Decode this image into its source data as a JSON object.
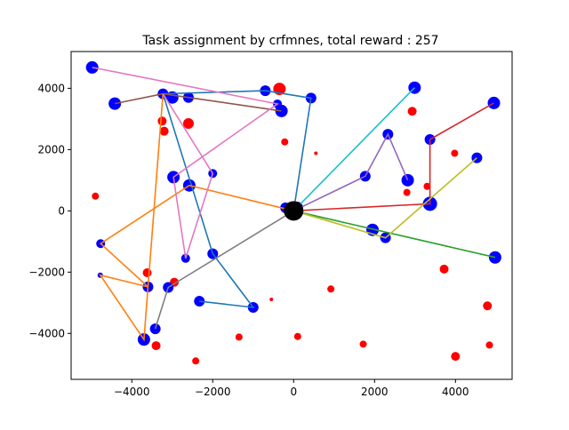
{
  "chart_data": {
    "type": "scatter",
    "title": "Task assignment by crfmnes, total reward : 257",
    "xlabel": "",
    "ylabel": "",
    "xlim": [
      -5500,
      5400
    ],
    "ylim": [
      -5500,
      5200
    ],
    "xticks": [
      -4000,
      -2000,
      0,
      2000,
      4000
    ],
    "yticks": [
      -4000,
      -2000,
      0,
      2000,
      4000
    ],
    "grid": false,
    "depot": {
      "x": 0,
      "y": 0,
      "r": 11,
      "color": "#000000"
    },
    "routes": [
      {
        "color": "#1f77b4",
        "points": [
          [
            0,
            0
          ],
          [
            430,
            3680
          ],
          [
            -700,
            3920
          ],
          [
            -3230,
            3820
          ],
          [
            -2000,
            -1400
          ],
          [
            -1000,
            -3150
          ],
          [
            -2330,
            -2950
          ]
        ]
      },
      {
        "color": "#ff7f0e",
        "points": [
          [
            0,
            0
          ],
          [
            -2580,
            830
          ],
          [
            -4770,
            -1070
          ],
          [
            -3600,
            -2480
          ],
          [
            -4780,
            -2100
          ],
          [
            -3700,
            -4200
          ],
          [
            -3230,
            3820
          ]
        ]
      },
      {
        "color": "#2ca02c",
        "points": [
          [
            0,
            0
          ],
          [
            4980,
            -1520
          ]
        ]
      },
      {
        "color": "#d62728",
        "points": [
          [
            0,
            0
          ],
          [
            3370,
            230
          ],
          [
            3370,
            2330
          ],
          [
            4950,
            3520
          ]
        ]
      },
      {
        "color": "#9467bd",
        "points": [
          [
            0,
            0
          ],
          [
            1770,
            1130
          ],
          [
            2330,
            2500
          ],
          [
            2820,
            1000
          ]
        ]
      },
      {
        "color": "#8c564b",
        "points": [
          [
            -4420,
            3500
          ],
          [
            -3230,
            3820
          ],
          [
            -300,
            3260
          ]
        ]
      },
      {
        "color": "#e377c2",
        "points": [
          [
            -4980,
            4680
          ],
          [
            -400,
            3490
          ],
          [
            -2970,
            1100
          ],
          [
            -2670,
            -1550
          ],
          [
            -2000,
            1220
          ],
          [
            -3230,
            3820
          ]
        ]
      },
      {
        "color": "#7f7f7f",
        "points": [
          [
            0,
            0
          ],
          [
            -3100,
            -2500
          ],
          [
            -3420,
            -3850
          ]
        ]
      },
      {
        "color": "#bcbd22",
        "points": [
          [
            0,
            0
          ],
          [
            2270,
            -880
          ],
          [
            4530,
            1730
          ]
        ]
      },
      {
        "color": "#17becf",
        "points": [
          [
            0,
            0
          ],
          [
            2990,
            4020
          ]
        ]
      }
    ],
    "blue_points": [
      {
        "x": -4980,
        "y": 4680,
        "r": 7
      },
      {
        "x": -4420,
        "y": 3500,
        "r": 7
      },
      {
        "x": -3230,
        "y": 3820,
        "r": 6
      },
      {
        "x": -3000,
        "y": 3700,
        "r": 7
      },
      {
        "x": -2600,
        "y": 3700,
        "r": 6
      },
      {
        "x": -700,
        "y": 3920,
        "r": 6
      },
      {
        "x": -300,
        "y": 3260,
        "r": 7
      },
      {
        "x": -400,
        "y": 3490,
        "r": 5
      },
      {
        "x": 430,
        "y": 3680,
        "r": 6
      },
      {
        "x": 2990,
        "y": 4020,
        "r": 7
      },
      {
        "x": 4950,
        "y": 3520,
        "r": 7
      },
      {
        "x": 3370,
        "y": 2330,
        "r": 6
      },
      {
        "x": 2330,
        "y": 2500,
        "r": 6
      },
      {
        "x": 1770,
        "y": 1130,
        "r": 6
      },
      {
        "x": 2820,
        "y": 1000,
        "r": 7
      },
      {
        "x": 4530,
        "y": 1730,
        "r": 6
      },
      {
        "x": 3370,
        "y": 230,
        "r": 8
      },
      {
        "x": -2970,
        "y": 1100,
        "r": 7
      },
      {
        "x": -2580,
        "y": 830,
        "r": 7
      },
      {
        "x": -2000,
        "y": 1220,
        "r": 5
      },
      {
        "x": -4770,
        "y": -1070,
        "r": 5
      },
      {
        "x": -4780,
        "y": -2100,
        "r": 3
      },
      {
        "x": -2670,
        "y": -1550,
        "r": 5
      },
      {
        "x": -2000,
        "y": -1400,
        "r": 6
      },
      {
        "x": -3600,
        "y": -2480,
        "r": 6
      },
      {
        "x": -3100,
        "y": -2500,
        "r": 6
      },
      {
        "x": -2330,
        "y": -2950,
        "r": 6
      },
      {
        "x": -1000,
        "y": -3150,
        "r": 6
      },
      {
        "x": -3420,
        "y": -3850,
        "r": 6
      },
      {
        "x": -3700,
        "y": -4200,
        "r": 7
      },
      {
        "x": 1950,
        "y": -620,
        "r": 7
      },
      {
        "x": 2270,
        "y": -880,
        "r": 6
      },
      {
        "x": 4980,
        "y": -1520,
        "r": 7
      },
      {
        "x": -200,
        "y": 100,
        "r": 6
      },
      {
        "x": 80,
        "y": 100,
        "r": 7
      }
    ],
    "red_points": [
      {
        "x": -350,
        "y": 3980,
        "r": 7
      },
      {
        "x": -3250,
        "y": 2930,
        "r": 5
      },
      {
        "x": -3200,
        "y": 2600,
        "r": 5
      },
      {
        "x": -2600,
        "y": 2850,
        "r": 6
      },
      {
        "x": -220,
        "y": 2250,
        "r": 4
      },
      {
        "x": 550,
        "y": 1880,
        "r": 2
      },
      {
        "x": 2930,
        "y": 3250,
        "r": 5
      },
      {
        "x": 3980,
        "y": 1880,
        "r": 4
      },
      {
        "x": 2800,
        "y": 600,
        "r": 4
      },
      {
        "x": 3300,
        "y": 800,
        "r": 4
      },
      {
        "x": -4900,
        "y": 480,
        "r": 4
      },
      {
        "x": -3620,
        "y": -2020,
        "r": 5
      },
      {
        "x": -2950,
        "y": -2330,
        "r": 5
      },
      {
        "x": -550,
        "y": -2890,
        "r": 2
      },
      {
        "x": 920,
        "y": -2550,
        "r": 4
      },
      {
        "x": 3720,
        "y": -1900,
        "r": 5
      },
      {
        "x": 4790,
        "y": -3100,
        "r": 5
      },
      {
        "x": -1350,
        "y": -4120,
        "r": 4
      },
      {
        "x": 100,
        "y": -4100,
        "r": 4
      },
      {
        "x": 1720,
        "y": -4350,
        "r": 4
      },
      {
        "x": 4840,
        "y": -4380,
        "r": 4
      },
      {
        "x": 4000,
        "y": -4750,
        "r": 5
      },
      {
        "x": -3400,
        "y": -4400,
        "r": 5
      },
      {
        "x": -2420,
        "y": -4900,
        "r": 4
      }
    ]
  }
}
